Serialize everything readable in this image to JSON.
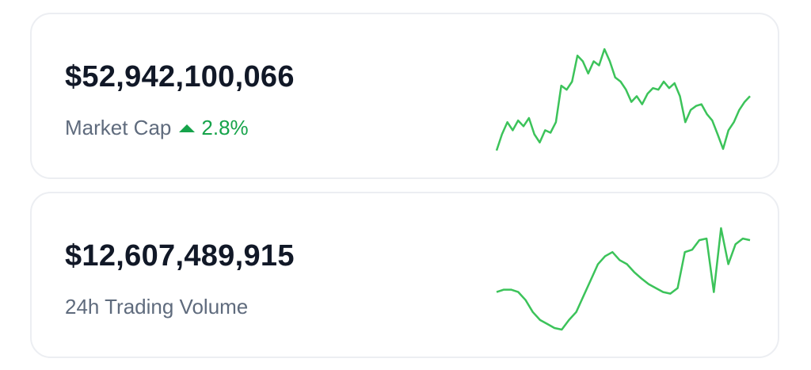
{
  "cards": [
    {
      "value": "$52,942,100,066",
      "label": "Market Cap",
      "change": "2.8%",
      "change_color": "#16a34a",
      "sparkline": {
        "type": "line",
        "color": "#3cc35a",
        "values": [
          15,
          35,
          50,
          40,
          52,
          45,
          55,
          35,
          25,
          40,
          37,
          50,
          95,
          90,
          100,
          132,
          125,
          110,
          125,
          120,
          140,
          125,
          105,
          100,
          90,
          75,
          82,
          72,
          85,
          92,
          90,
          100,
          92,
          98,
          82,
          50,
          65,
          70,
          72,
          60,
          52,
          35,
          17,
          40,
          50,
          65,
          75,
          82
        ]
      }
    },
    {
      "value": "$12,607,489,915",
      "label": "24h Trading Volume",
      "sparkline": {
        "type": "line",
        "color": "#3cc35a",
        "values": [
          85,
          88,
          88,
          85,
          75,
          60,
          50,
          45,
          40,
          38,
          50,
          60,
          80,
          100,
          120,
          130,
          135,
          125,
          120,
          110,
          102,
          95,
          90,
          85,
          83,
          90,
          135,
          138,
          150,
          152,
          85,
          165,
          120,
          145,
          152,
          150
        ]
      }
    }
  ]
}
